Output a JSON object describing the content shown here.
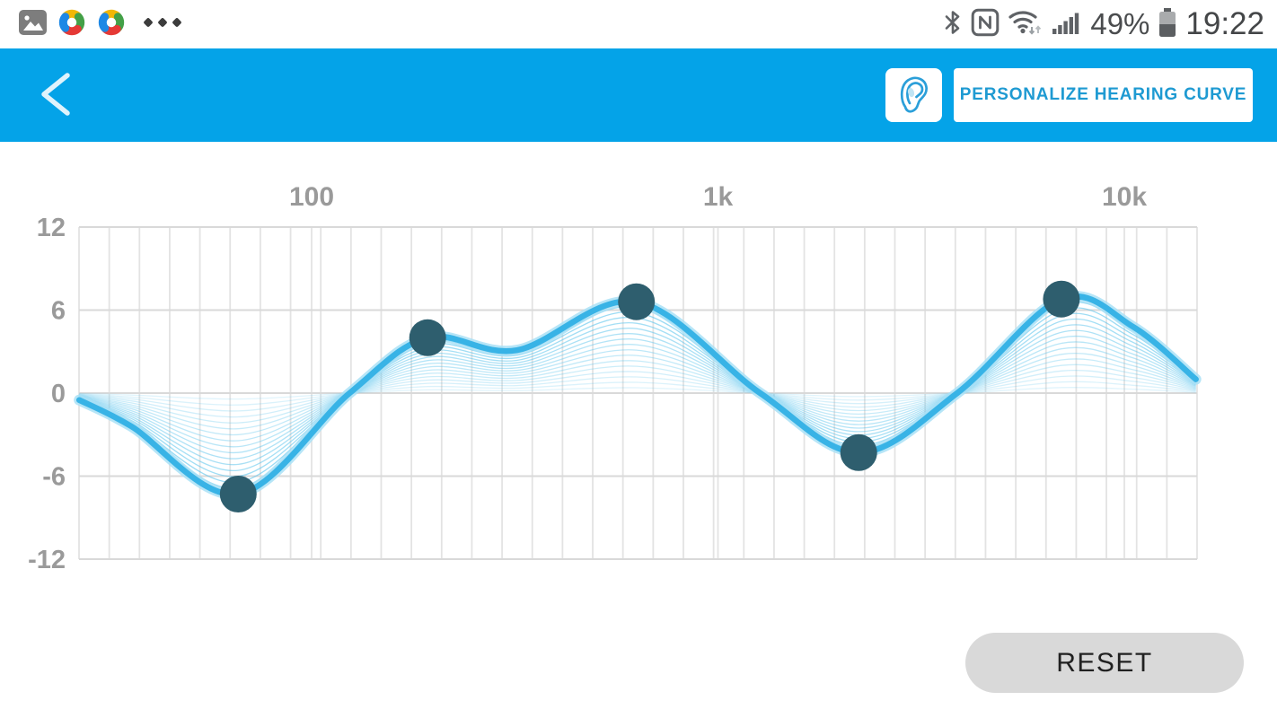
{
  "status_bar": {
    "time": "19:22",
    "battery": "49%",
    "left_icons": [
      "gallery-icon",
      "pinwheel-app-icon",
      "pinwheel-app-icon",
      "overflow-dots-icon"
    ],
    "right_icons": [
      "bluetooth-icon",
      "nfc-icon",
      "wifi-icon",
      "signal-icon",
      "battery-icon"
    ]
  },
  "header": {
    "personalize_label": "PERSONALIZE HEARING CURVE",
    "background": "#04a3e8"
  },
  "reset_label": "RESET",
  "chart_data": {
    "type": "line",
    "title": "Equalizer hearing curve (5-band)",
    "x_axis": {
      "scale": "log",
      "unit": "Hz",
      "tick_labels": [
        "100",
        "1k",
        "10k"
      ],
      "tick_freqs": [
        100,
        1000,
        10000
      ],
      "range_hz": [
        27,
        15000
      ],
      "grid": true
    },
    "y_axis": {
      "unit": "dB",
      "tick_labels": [
        "12",
        "6",
        "0",
        "-6",
        "-12"
      ],
      "tick_values": [
        12,
        6,
        0,
        -6,
        -12
      ],
      "range": [
        -12,
        12
      ],
      "grid": true
    },
    "control_points": [
      {
        "freq_hz": 66,
        "gain_db": -7.3
      },
      {
        "freq_hz": 193,
        "gain_db": 4.0
      },
      {
        "freq_hz": 630,
        "gain_db": 6.6
      },
      {
        "freq_hz": 2220,
        "gain_db": -4.3
      },
      {
        "freq_hz": 7000,
        "gain_db": 6.8
      }
    ],
    "curve_points": [
      {
        "freq_hz": 26.8,
        "gain_db": -0.5
      },
      {
        "freq_hz": 36,
        "gain_db": -2.4
      },
      {
        "freq_hz": 66,
        "gain_db": -7.3
      },
      {
        "freq_hz": 124,
        "gain_db": 0.0
      },
      {
        "freq_hz": 193,
        "gain_db": 4.0
      },
      {
        "freq_hz": 320,
        "gain_db": 3.1
      },
      {
        "freq_hz": 630,
        "gain_db": 6.6
      },
      {
        "freq_hz": 1270,
        "gain_db": 0.0
      },
      {
        "freq_hz": 2220,
        "gain_db": -4.3
      },
      {
        "freq_hz": 3880,
        "gain_db": 0.0
      },
      {
        "freq_hz": 7000,
        "gain_db": 6.8
      },
      {
        "freq_hz": 10500,
        "gain_db": 4.8
      },
      {
        "freq_hz": 15000,
        "gain_db": 1.0
      }
    ],
    "fan_line_count": 16,
    "legend": "none"
  },
  "colors": {
    "header_bg": "#04a3e8",
    "curve": "#38b3e6",
    "curve_halo": "#a9e0f6",
    "fan": "#55c2ec",
    "handle": "#2e5e6e",
    "grid": "#e3e3e3",
    "axis_label": "#9a9a9a",
    "reset_bg": "#d9d9d9",
    "button_text": "#1e9ad2"
  }
}
